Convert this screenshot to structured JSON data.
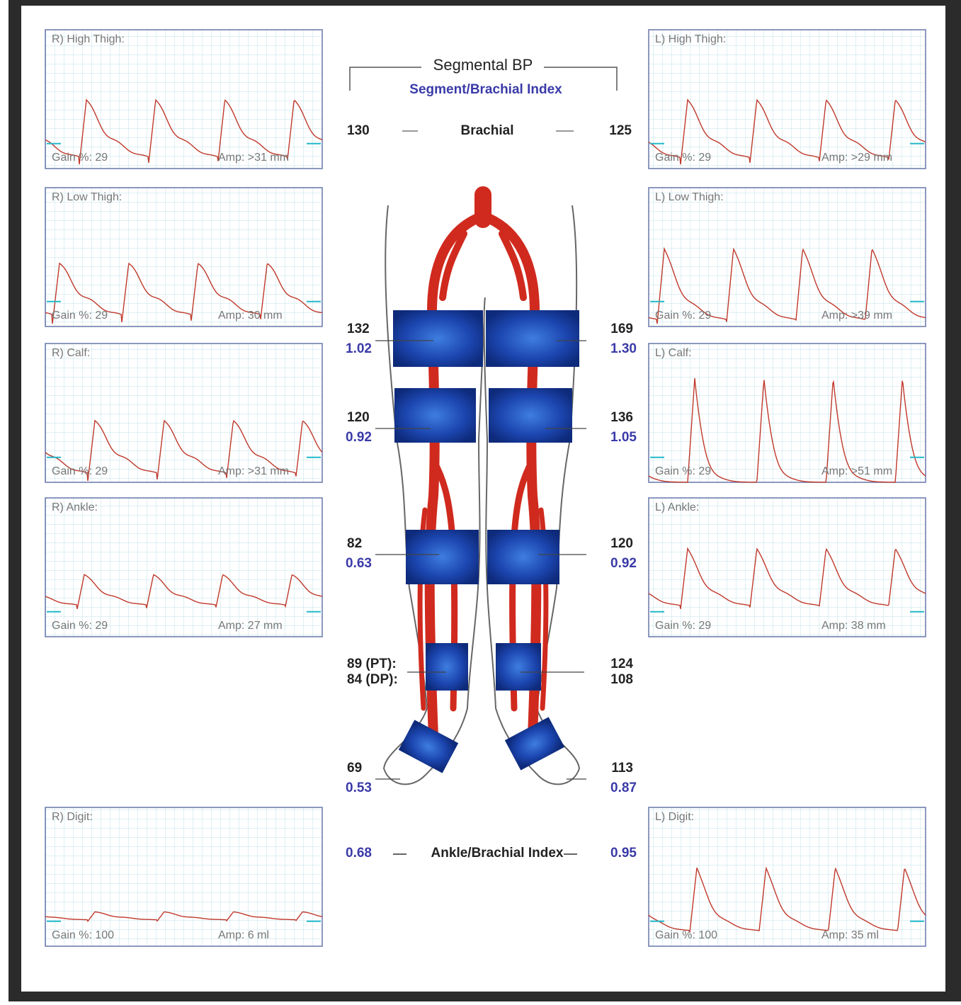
{
  "header": {
    "title": "Segmental BP",
    "subtitle": "Segment/Brachial Index"
  },
  "brachial": {
    "right": "130",
    "label": "Brachial",
    "left": "125"
  },
  "segments": [
    {
      "right_pressure": "132",
      "right_index": "1.02",
      "left_pressure": "169",
      "left_index": "1.30"
    },
    {
      "right_pressure": "120",
      "right_index": "0.92",
      "left_pressure": "136",
      "left_index": "1.05"
    },
    {
      "right_pressure": "82",
      "right_index": "0.63",
      "left_pressure": "120",
      "left_index": "0.92"
    }
  ],
  "ankle": {
    "right": [
      "89 (PT):",
      "84 (DP):"
    ],
    "left": [
      "124",
      "108"
    ]
  },
  "foot": {
    "right_pressure": "69",
    "right_index": "0.53",
    "left_pressure": "113",
    "left_index": "0.87"
  },
  "abi": {
    "right": "0.68",
    "label": "Ankle/Brachial Index",
    "left": "0.95"
  },
  "waveforms": {
    "right": [
      {
        "title": "R) High Thigh:",
        "gain": "Gain %: 29",
        "amp": "Amp: >31 mm"
      },
      {
        "title": "R) Low Thigh:",
        "gain": "Gain %: 29",
        "amp": "Amp: 30 mm"
      },
      {
        "title": "R) Calf:",
        "gain": "Gain %: 29",
        "amp": "Amp: >31 mm"
      },
      {
        "title": "R) Ankle:",
        "gain": "Gain %: 29",
        "amp": "Amp: 27 mm"
      },
      {
        "title": "R) Digit:",
        "gain": "Gain %: 100",
        "amp": "Amp: 6 ml"
      }
    ],
    "left": [
      {
        "title": "L) High Thigh:",
        "gain": "Gain %: 29",
        "amp": "Amp: >29 mm"
      },
      {
        "title": "L) Low Thigh:",
        "gain": "Gain %: 29",
        "amp": "Amp: >39 mm"
      },
      {
        "title": "L) Calf:",
        "gain": "Gain %: 29",
        "amp": "Amp: >51 mm"
      },
      {
        "title": "L) Ankle:",
        "gain": "Gain %: 29",
        "amp": "Amp: 38 mm"
      },
      {
        "title": "L) Digit:",
        "gain": "Gain %: 100",
        "amp": "Amp: 35 ml"
      }
    ]
  }
}
